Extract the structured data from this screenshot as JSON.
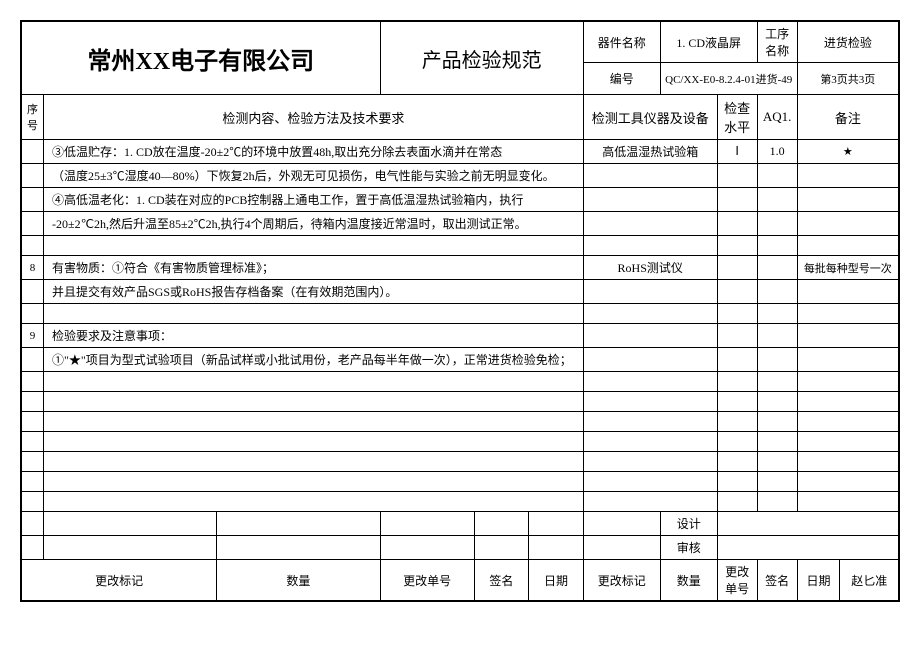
{
  "header": {
    "company": "常州XX电子有限公司",
    "doc_title": "产品检验规范",
    "device_name_label": "器件名称",
    "device_name": "1. CD液晶屏",
    "process_name_label": "工序名称",
    "process_name": "进货检验",
    "code_label": "编号",
    "code_value": "QC/XX-E0-8.2.4-01进货-49",
    "page_info": "第3页共3页"
  },
  "columns": {
    "seq": "序号",
    "content": "检测内容、检验方法及技术要求",
    "tool": "检测工具仪器及设备",
    "level": "检查水平",
    "aql": "AQ1.",
    "remark": "备注"
  },
  "rows": [
    {
      "seq": "",
      "content": "③低温贮存：1. CD放在温度-20±2℃的环境中放置48h,取出充分除去表面水滴并在常态",
      "tool": "高低温湿热试验箱",
      "level": "Ⅰ",
      "aql": "1.0",
      "remark": "★"
    },
    {
      "seq": "",
      "content": "（温度25±3℃湿度40—80%）下恢复2h后，外观无可见损伤，电气性能与实验之前无明显变化。",
      "tool": "",
      "level": "",
      "aql": "",
      "remark": ""
    },
    {
      "seq": "",
      "content": "④高低温老化：1. CD装在对应的PCB控制器上通电工作，置于高低温湿热试验箱内，执行",
      "tool": "",
      "level": "",
      "aql": "",
      "remark": ""
    },
    {
      "seq": "",
      "content": "-20±2℃2h,然后升温至85±2℃2h,执行4个周期后，待箱内温度接近常温时，取出测试正常。",
      "tool": "",
      "level": "",
      "aql": "",
      "remark": ""
    },
    {
      "seq": "",
      "content": "",
      "tool": "",
      "level": "",
      "aql": "",
      "remark": ""
    },
    {
      "seq": "8",
      "content": "有害物质：①符合《有害物质管理标准》；",
      "tool": "RoHS测试仪",
      "level": "",
      "aql": "",
      "remark": "每批每种型号一次"
    },
    {
      "seq": "",
      "content": "并且提交有效产品SGS或RoHS报告存档备案（在有效期范围内）。",
      "tool": "",
      "level": "",
      "aql": "",
      "remark": ""
    },
    {
      "seq": "",
      "content": "",
      "tool": "",
      "level": "",
      "aql": "",
      "remark": ""
    },
    {
      "seq": "9",
      "content": "检验要求及注意事项：",
      "tool": "",
      "level": "",
      "aql": "",
      "remark": ""
    },
    {
      "seq": "",
      "content": "①\"★\"项目为型式试验项目（新品试样或小批试用份，老产品每半年做一次），正常进货检验免检；",
      "tool": "",
      "level": "",
      "aql": "",
      "remark": ""
    },
    {
      "seq": "",
      "content": "",
      "tool": "",
      "level": "",
      "aql": "",
      "remark": ""
    },
    {
      "seq": "",
      "content": "",
      "tool": "",
      "level": "",
      "aql": "",
      "remark": ""
    },
    {
      "seq": "",
      "content": "",
      "tool": "",
      "level": "",
      "aql": "",
      "remark": ""
    },
    {
      "seq": "",
      "content": "",
      "tool": "",
      "level": "",
      "aql": "",
      "remark": ""
    },
    {
      "seq": "",
      "content": "",
      "tool": "",
      "level": "",
      "aql": "",
      "remark": ""
    },
    {
      "seq": "",
      "content": "",
      "tool": "",
      "level": "",
      "aql": "",
      "remark": ""
    },
    {
      "seq": "",
      "content": "",
      "tool": "",
      "level": "",
      "aql": "",
      "remark": ""
    }
  ],
  "signoff": {
    "design_label": "设计",
    "review_label": "审核"
  },
  "footer": {
    "change_mark": "更改标记",
    "quantity": "数量",
    "change_no": "更改单号",
    "signature": "签名",
    "date": "日期",
    "approver": "赵匕准"
  }
}
